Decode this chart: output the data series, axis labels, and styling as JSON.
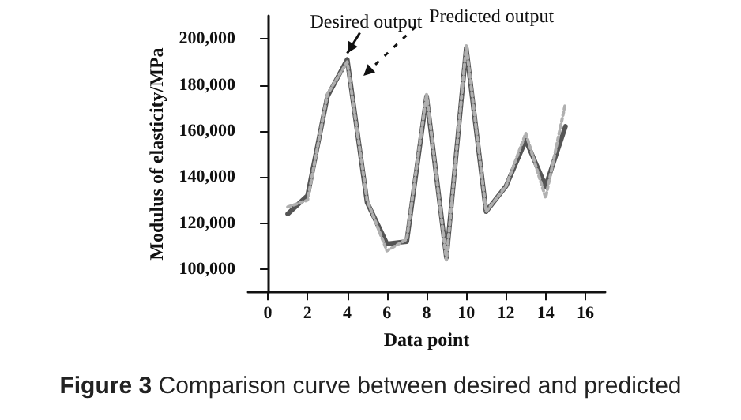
{
  "chart_data": {
    "type": "line",
    "xlabel": "Data point",
    "ylabel": "Modulus of elasticity/MPa",
    "x": [
      1,
      2,
      3,
      4,
      5,
      6,
      7,
      8,
      9,
      10,
      11,
      12,
      13,
      14,
      15
    ],
    "series": [
      {
        "color": "#555555",
        "line_style": "solid",
        "values": [
          124000,
          132000,
          175000,
          191000,
          129000,
          111000,
          112000,
          175000,
          105000,
          196000,
          125000,
          136000,
          156000,
          136000,
          162000
        ]
      },
      {
        "color": "#b0b0b0",
        "line_style": "dotted",
        "values": [
          127000,
          130000,
          176000,
          190000,
          130000,
          108000,
          113000,
          176000,
          104000,
          197000,
          125000,
          136000,
          159000,
          131000,
          172000
        ]
      }
    ],
    "xlim": [
      -1,
      17
    ],
    "xticks": [
      0,
      2,
      4,
      6,
      8,
      10,
      12,
      14,
      16
    ],
    "ylim": [
      90000,
      210000
    ],
    "yticks": [
      {
        "value": 100000,
        "label": "100,000"
      },
      {
        "value": 120000,
        "label": "120,000"
      },
      {
        "value": 140000,
        "label": "140,000"
      },
      {
        "value": 160000,
        "label": "160,000"
      },
      {
        "value": 180000,
        "label": "180,000"
      },
      {
        "value": 200000,
        "label": "200,000"
      }
    ],
    "grid": false,
    "marker": "none",
    "annotations": [
      {
        "text": "Desired output",
        "x": 4,
        "y": 191000
      },
      {
        "text": "Predicted output",
        "x": 4.5,
        "y": 184000
      },
      "Figure 3 Comparison curve between desired and predicted"
    ]
  }
}
